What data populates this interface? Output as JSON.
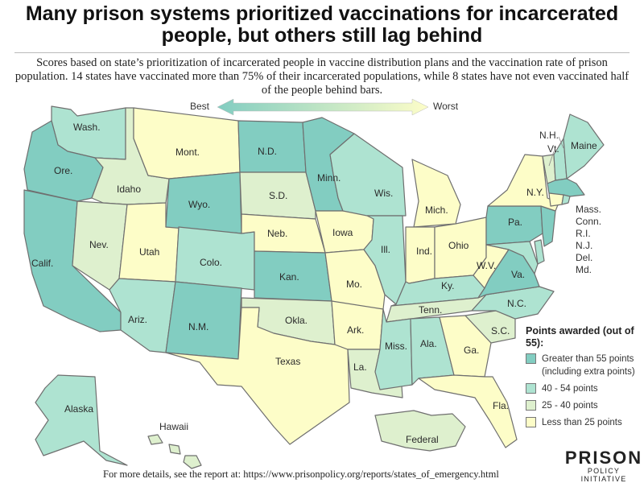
{
  "title": "Many prison systems prioritized vaccinations for incarcerated people, but others still lag behind",
  "subtitle": "Scores based on state’s prioritization of incarcerated people in vaccine distribution plans and the vaccination rate of prison population. 14 states have vaccinated more than 75% of their incarcerated populations, while 8 states have not even vaccinated half of the people behind bars.",
  "scale": {
    "best": "Best",
    "worst": "Worst"
  },
  "colors": {
    "greater_than_55": "#82cdc1",
    "40_54": "#aee3d1",
    "25_40": "#def0ce",
    "less_than_25": "#fdfdc8"
  },
  "legend": {
    "title": "Points awarded (out of 55):",
    "items": [
      {
        "key": "greater_than_55",
        "label": "Greater than 55 points (including extra points)"
      },
      {
        "key": "40_54",
        "label": "40 - 54 points"
      },
      {
        "key": "25_40",
        "label": "25 - 40 points"
      },
      {
        "key": "less_than_25",
        "label": "Less than 25 points"
      }
    ]
  },
  "states": {
    "wa": {
      "label": "Wash.",
      "category": "40_54"
    },
    "or": {
      "label": "Ore.",
      "category": "greater_than_55"
    },
    "ca": {
      "label": "Calif.",
      "category": "greater_than_55"
    },
    "id": {
      "label": "Idaho",
      "category": "25_40"
    },
    "nv": {
      "label": "Nev.",
      "category": "25_40"
    },
    "ut": {
      "label": "Utah",
      "category": "less_than_25"
    },
    "az": {
      "label": "Ariz.",
      "category": "40_54"
    },
    "mt": {
      "label": "Mont.",
      "category": "less_than_25"
    },
    "wy": {
      "label": "Wyo.",
      "category": "greater_than_55"
    },
    "co": {
      "label": "Colo.",
      "category": "40_54"
    },
    "nm": {
      "label": "N.M.",
      "category": "greater_than_55"
    },
    "nd": {
      "label": "N.D.",
      "category": "greater_than_55"
    },
    "sd": {
      "label": "S.D.",
      "category": "25_40"
    },
    "ne": {
      "label": "Neb.",
      "category": "less_than_25"
    },
    "ks": {
      "label": "Kan.",
      "category": "greater_than_55"
    },
    "ok": {
      "label": "Okla.",
      "category": "25_40"
    },
    "tx": {
      "label": "Texas",
      "category": "less_than_25"
    },
    "mn": {
      "label": "Minn.",
      "category": "greater_than_55"
    },
    "ia": {
      "label": "Iowa",
      "category": "less_than_25"
    },
    "mo": {
      "label": "Mo.",
      "category": "less_than_25"
    },
    "ar": {
      "label": "Ark.",
      "category": "less_than_25"
    },
    "la": {
      "label": "La.",
      "category": "25_40"
    },
    "wi": {
      "label": "Wis.",
      "category": "40_54"
    },
    "il": {
      "label": "Ill.",
      "category": "40_54"
    },
    "mi": {
      "label": "Mich.",
      "category": "less_than_25"
    },
    "in": {
      "label": "Ind.",
      "category": "less_than_25"
    },
    "oh": {
      "label": "Ohio",
      "category": "less_than_25"
    },
    "ky": {
      "label": "Ky.",
      "category": "40_54"
    },
    "tn": {
      "label": "Tenn.",
      "category": "25_40"
    },
    "ms": {
      "label": "Miss.",
      "category": "40_54"
    },
    "al": {
      "label": "Ala.",
      "category": "40_54"
    },
    "ga": {
      "label": "Ga.",
      "category": "less_than_25"
    },
    "fl": {
      "label": "Fla.",
      "category": "less_than_25"
    },
    "sc": {
      "label": "S.C.",
      "category": "25_40"
    },
    "nc": {
      "label": "N.C.",
      "category": "40_54"
    },
    "va": {
      "label": "Va.",
      "category": "greater_than_55"
    },
    "wv": {
      "label": "W.V.",
      "category": "less_than_25"
    },
    "pa": {
      "label": "Pa.",
      "category": "greater_than_55"
    },
    "ny": {
      "label": "N.Y.",
      "category": "less_than_25"
    },
    "vt": {
      "label": "Vt.",
      "category": "25_40"
    },
    "nh": {
      "label": "N.H.",
      "category": "40_54"
    },
    "me": {
      "label": "Maine",
      "category": "40_54"
    },
    "ma": {
      "label": "Mass.",
      "category": "greater_than_55"
    },
    "ct": {
      "label": "Conn.",
      "category": "less_than_25"
    },
    "ri": {
      "label": "R.I.",
      "category": "40_54"
    },
    "nj": {
      "label": "N.J.",
      "category": "greater_than_55"
    },
    "de": {
      "label": "Del.",
      "category": "40_54"
    },
    "md": {
      "label": "Md.",
      "category": "40_54"
    },
    "ak": {
      "label": "Alaska",
      "category": "40_54"
    },
    "hi": {
      "label": "Hawaii",
      "category": "25_40"
    },
    "federal": {
      "label": "Federal",
      "category": "25_40"
    }
  },
  "footer": "For more details, see the report at: https://www.prisonpolicy.org/reports/states_of_emergency.html",
  "logo": {
    "main": "PRISON",
    "sub": "POLICY INITIATIVE"
  }
}
